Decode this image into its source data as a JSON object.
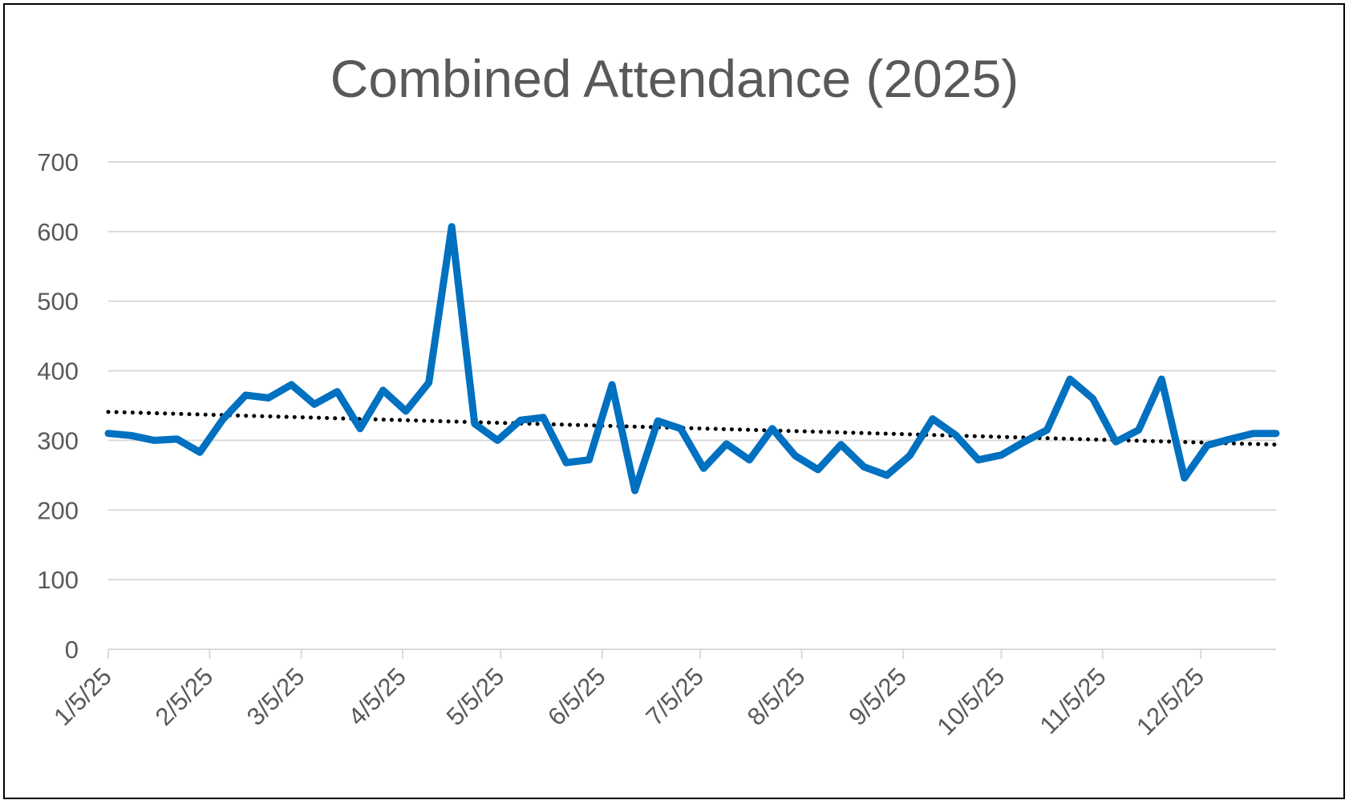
{
  "chart_data": {
    "type": "line",
    "title": "Combined Attendance (2025)",
    "xlabel": "",
    "ylabel": "",
    "ylim": [
      0,
      700
    ],
    "yticks": [
      "0",
      "100",
      "200",
      "300",
      "400",
      "500",
      "600",
      "700"
    ],
    "y_tick_values": [
      0,
      100,
      200,
      300,
      400,
      500,
      600,
      700
    ],
    "xticks": [
      "1/5/25",
      "2/5/25",
      "3/5/25",
      "4/5/25",
      "5/5/25",
      "6/5/25",
      "7/5/25",
      "8/5/25",
      "9/5/25",
      "10/5/25",
      "11/5/25",
      "12/5/25"
    ],
    "x_tick_dates": [
      "2025-01-05",
      "2025-02-05",
      "2025-03-05",
      "2025-04-05",
      "2025-05-05",
      "2025-06-05",
      "2025-07-05",
      "2025-08-05",
      "2025-09-05",
      "2025-10-05",
      "2025-11-05",
      "2025-12-05"
    ],
    "xlim": [
      "2025-01-05",
      "2025-12-28"
    ],
    "grid": true,
    "legend": "none",
    "series": [
      {
        "color": "#0070C0",
        "x": [
          "2025-01-05",
          "2025-01-12",
          "2025-01-19",
          "2025-01-26",
          "2025-02-02",
          "2025-02-09",
          "2025-02-16",
          "2025-02-23",
          "2025-03-02",
          "2025-03-09",
          "2025-03-16",
          "2025-03-23",
          "2025-03-30",
          "2025-04-06",
          "2025-04-13",
          "2025-04-20",
          "2025-04-27",
          "2025-05-04",
          "2025-05-11",
          "2025-05-18",
          "2025-05-25",
          "2025-06-01",
          "2025-06-08",
          "2025-06-15",
          "2025-06-22",
          "2025-06-29",
          "2025-07-06",
          "2025-07-13",
          "2025-07-20",
          "2025-07-27",
          "2025-08-03",
          "2025-08-10",
          "2025-08-17",
          "2025-08-24",
          "2025-08-31",
          "2025-09-07",
          "2025-09-14",
          "2025-09-21",
          "2025-09-28",
          "2025-10-05",
          "2025-10-12",
          "2025-10-19",
          "2025-10-26",
          "2025-11-02",
          "2025-11-09",
          "2025-11-16",
          "2025-11-23",
          "2025-11-30",
          "2025-12-07",
          "2025-12-14",
          "2025-12-21",
          "2025-12-28"
        ],
        "values": [
          310,
          307,
          300,
          302,
          283,
          330,
          365,
          361,
          380,
          352,
          370,
          317,
          372,
          342,
          383,
          607,
          324,
          300,
          329,
          333,
          268,
          272,
          380,
          228,
          328,
          317,
          260,
          295,
          272,
          317,
          278,
          258,
          294,
          262,
          250,
          278,
          331,
          308,
          272,
          279,
          298,
          315,
          388,
          360,
          298,
          315,
          388,
          246,
          293,
          302,
          310,
          310
        ]
      }
    ],
    "trendline": {
      "type": "linear",
      "style": "dotted",
      "color": "#000000",
      "start": 341,
      "end": 294
    }
  }
}
